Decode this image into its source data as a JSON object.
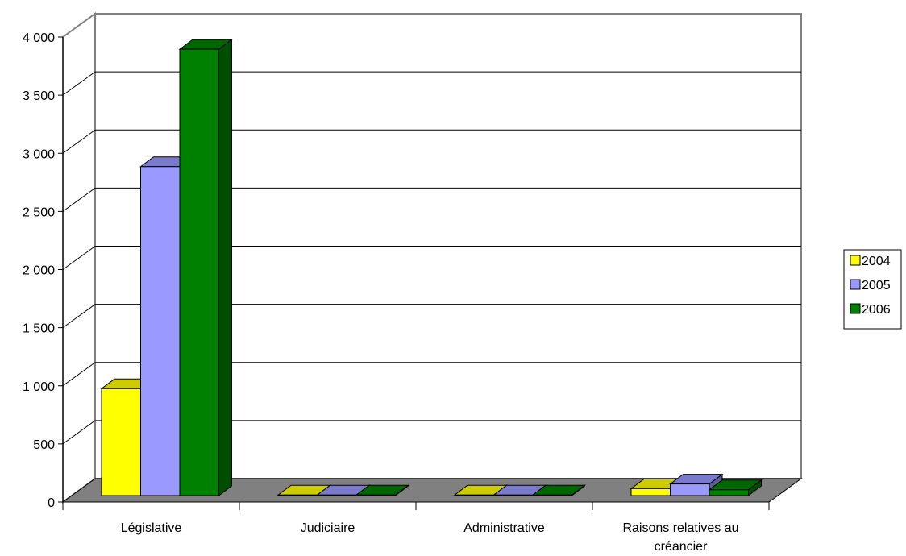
{
  "chart_data": {
    "type": "bar",
    "title": "",
    "xlabel": "",
    "ylabel": "",
    "ylim": [
      0,
      4000
    ],
    "y_ticks": [
      "0",
      "500",
      "1 000",
      "1 500",
      "2 000",
      "2 500",
      "3 000",
      "3 500",
      "4 000"
    ],
    "y_tick_values": [
      0,
      500,
      1000,
      1500,
      2000,
      2500,
      3000,
      3500,
      4000
    ],
    "categories": [
      [
        "Législative"
      ],
      [
        "Judiciaire"
      ],
      [
        "Administrative"
      ],
      [
        "Raisons relatives au",
        "créancier"
      ]
    ],
    "series": [
      {
        "name": "2004",
        "color": "#FFFF00",
        "top_color": "#CCCC00",
        "side_color": "#999900",
        "values": [
          920,
          5,
          5,
          60
        ]
      },
      {
        "name": "2005",
        "color": "#9999FF",
        "top_color": "#7A7ACC",
        "side_color": "#5C5C99",
        "values": [
          2830,
          5,
          5,
          100
        ]
      },
      {
        "name": "2006",
        "color": "#008000",
        "top_color": "#006600",
        "side_color": "#004D00",
        "values": [
          3840,
          5,
          5,
          50
        ]
      }
    ],
    "grid": true,
    "legend_position": "right",
    "three_d": true
  }
}
